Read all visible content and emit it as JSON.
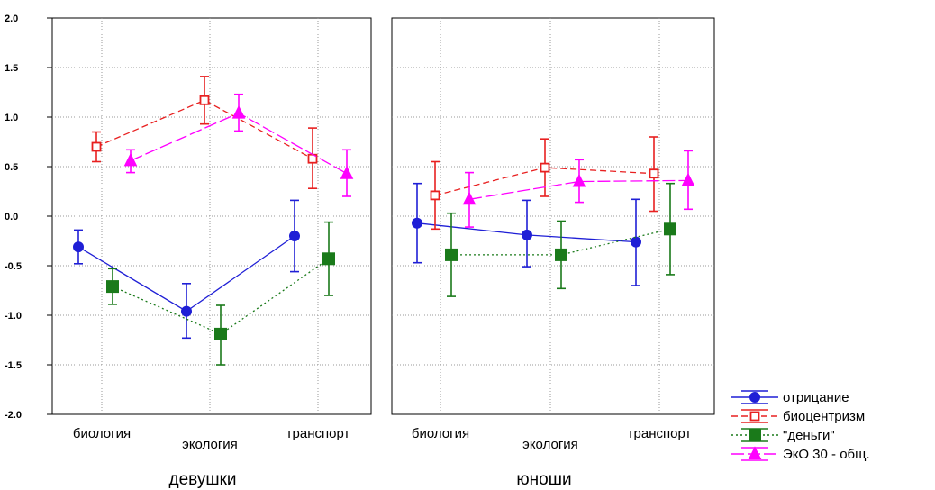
{
  "chart_data": {
    "type": "line",
    "ylim": [
      -2.0,
      2.0
    ],
    "y_ticks": [
      "2.0",
      "1.5",
      "1.0",
      "0.5",
      "0.0",
      "-0.5",
      "-1.0",
      "-1.5",
      "-2.0"
    ],
    "y_tick_values": [
      2.0,
      1.5,
      1.0,
      0.5,
      0.0,
      -0.5,
      -1.0,
      -1.5,
      -2.0
    ],
    "categories": [
      "биология",
      "экология",
      "транспорт"
    ],
    "grid": true,
    "legend_position": "bottom-right",
    "panels": [
      {
        "label": "девушки",
        "series": [
          {
            "name": "отрицание",
            "color": "#1f1fd6",
            "marker": "circle",
            "dash": "solid",
            "values": [
              -0.31,
              -0.96,
              -0.2
            ],
            "lower": [
              -0.48,
              -1.23,
              -0.56
            ],
            "upper": [
              -0.14,
              -0.68,
              0.16
            ]
          },
          {
            "name": "биоцентризм",
            "color": "#e82020",
            "marker": "open-square",
            "dash": "dash",
            "values": [
              0.7,
              1.17,
              0.58
            ],
            "lower": [
              0.55,
              0.93,
              0.28
            ],
            "upper": [
              0.85,
              1.41,
              0.89
            ]
          },
          {
            "name": "\"деньги\"",
            "color": "#1a7a1a",
            "marker": "square",
            "dash": "dot",
            "values": [
              -0.71,
              -1.19,
              -0.43
            ],
            "lower": [
              -0.89,
              -1.5,
              -0.8
            ],
            "upper": [
              -0.53,
              -0.9,
              -0.06
            ]
          },
          {
            "name": "ЭкО 30 - общ.",
            "color": "#ff00ff",
            "marker": "triangle",
            "dash": "longdash",
            "values": [
              0.56,
              1.04,
              0.43
            ],
            "lower": [
              0.44,
              0.86,
              0.2
            ],
            "upper": [
              0.67,
              1.23,
              0.67
            ]
          }
        ]
      },
      {
        "label": "юноши",
        "series": [
          {
            "name": "отрицание",
            "color": "#1f1fd6",
            "marker": "circle",
            "dash": "solid",
            "values": [
              -0.07,
              -0.19,
              -0.26
            ],
            "lower": [
              -0.47,
              -0.51,
              -0.7
            ],
            "upper": [
              0.33,
              0.16,
              0.17
            ]
          },
          {
            "name": "биоцентризм",
            "color": "#e82020",
            "marker": "open-square",
            "dash": "dash",
            "values": [
              0.21,
              0.49,
              0.43
            ],
            "lower": [
              -0.13,
              0.2,
              0.05
            ],
            "upper": [
              0.55,
              0.78,
              0.8
            ]
          },
          {
            "name": "\"деньги\"",
            "color": "#1a7a1a",
            "marker": "square",
            "dash": "dot",
            "values": [
              -0.39,
              -0.39,
              -0.13
            ],
            "lower": [
              -0.81,
              -0.73,
              -0.59
            ],
            "upper": [
              0.03,
              -0.05,
              0.33
            ]
          },
          {
            "name": "ЭкО 30 - общ.",
            "color": "#ff00ff",
            "marker": "triangle",
            "dash": "longdash",
            "values": [
              0.17,
              0.35,
              0.36
            ],
            "lower": [
              -0.11,
              0.14,
              0.07
            ],
            "upper": [
              0.44,
              0.57,
              0.66
            ]
          }
        ]
      }
    ],
    "legend": [
      "отрицание",
      "биоцентризм",
      "\"деньги\"",
      "ЭкО 30 - общ."
    ]
  }
}
